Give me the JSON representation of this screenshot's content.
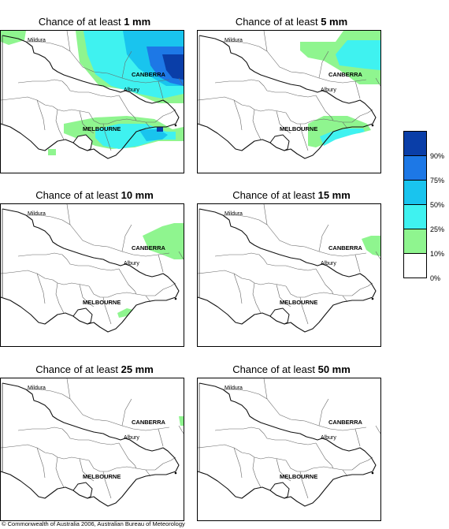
{
  "panels": [
    {
      "title_prefix": "Chance of at least ",
      "amount": "1 mm"
    },
    {
      "title_prefix": "Chance of at least ",
      "amount": "5 mm"
    },
    {
      "title_prefix": "Chance of at least ",
      "amount": "10 mm"
    },
    {
      "title_prefix": "Chance of at least ",
      "amount": "15 mm"
    },
    {
      "title_prefix": "Chance of at least ",
      "amount": "25 mm"
    },
    {
      "title_prefix": "Chance of at least ",
      "amount": "50 mm"
    }
  ],
  "cities": {
    "mildura": "Mildura",
    "canberra": "CANBERRA",
    "albury": "Albury",
    "melbourne": "MELBOURNE"
  },
  "legend": {
    "labels": [
      "90%",
      "75%",
      "50%",
      "25%",
      "10%",
      "0%"
    ],
    "colors": [
      "#0a3ea8",
      "#1d78e6",
      "#19c4ee",
      "#3ff2f0",
      "#8ff58f",
      "#ffffff"
    ]
  },
  "copyright": "© Commonwealth of Australia 2006, Australian Bureau of Meteorology"
}
